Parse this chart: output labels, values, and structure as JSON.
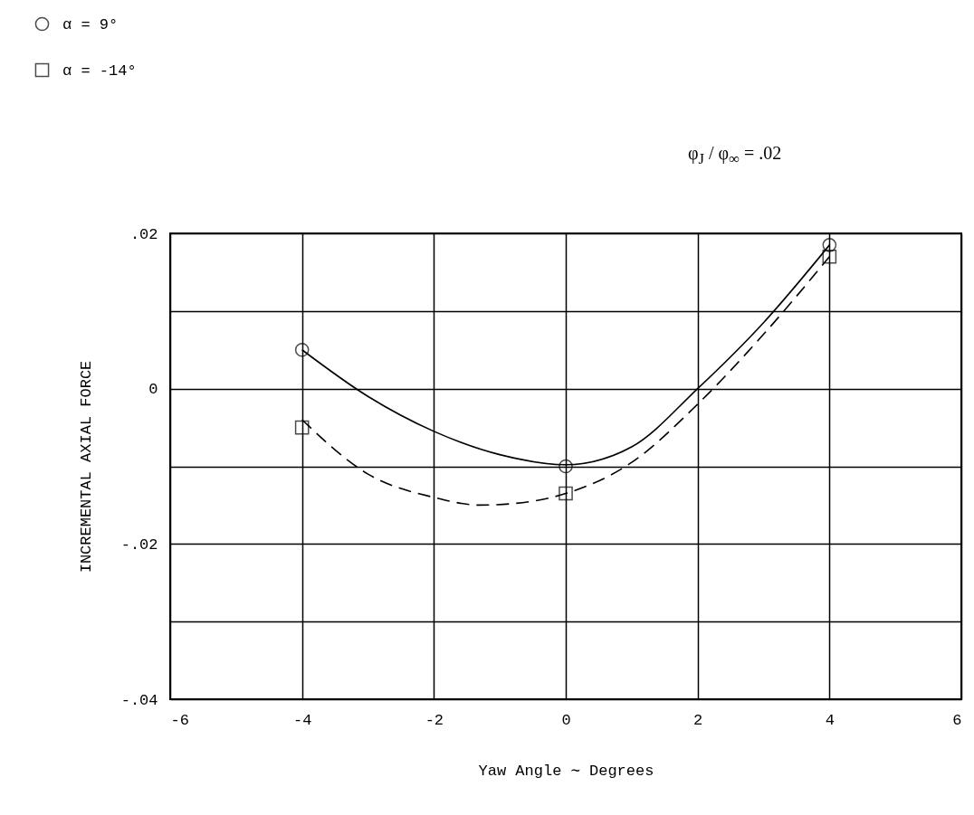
{
  "chart_data": {
    "type": "scatter",
    "xlabel": "Yaw Angle ∼ Degrees",
    "ylabel": "INCREMENTAL AXIAL FORCE",
    "annotations": [
      "φ$_{J}$ / φ$_{∞}$ = .02"
    ],
    "xlim": [
      -6,
      6
    ],
    "xticks": [
      -6,
      -4,
      -2,
      0,
      2,
      4,
      6
    ],
    "ylim": [
      -0.04,
      0.02
    ],
    "yticks": [
      {
        "value": -0.04,
        "label": "-.04"
      },
      {
        "value": -0.03,
        "label": null
      },
      {
        "value": -0.02,
        "label": "-.02"
      },
      {
        "value": -0.01,
        "label": null
      },
      {
        "value": 0,
        "label": "0"
      },
      {
        "value": 0.01,
        "label": null
      },
      {
        "value": 0.02,
        "label": ".02"
      }
    ],
    "grid": true,
    "legend": "top left",
    "series": [
      {
        "name": "α = 9°",
        "marker": "circle",
        "color": "#000000",
        "x": [
          -4,
          0,
          4
        ],
        "values": [
          0.005,
          -0.01,
          0.0185
        ]
      },
      {
        "name": "α = -14°",
        "marker": "square",
        "color": "#000000",
        "x": [
          -4,
          0,
          4
        ],
        "values": [
          -0.005,
          -0.0135,
          0.017
        ]
      },
      {
        "type": "line",
        "line_style": "solid",
        "color": "#000000",
        "x": [
          -4,
          -3,
          -2,
          -1,
          0,
          1,
          2,
          3,
          4
        ],
        "values": [
          0.005,
          -0.001,
          -0.0055,
          -0.0085,
          -0.0098,
          -0.0075,
          0.0,
          0.0085,
          0.0185
        ]
      },
      {
        "type": "line",
        "line_style": "dashed",
        "color": "#000000",
        "x": [
          -4,
          -3,
          -2,
          -1.3,
          -0.5,
          0,
          1,
          2,
          3,
          4
        ],
        "values": [
          -0.004,
          -0.011,
          -0.014,
          -0.015,
          -0.0145,
          -0.0135,
          -0.0095,
          -0.002,
          0.007,
          0.017
        ]
      }
    ]
  }
}
